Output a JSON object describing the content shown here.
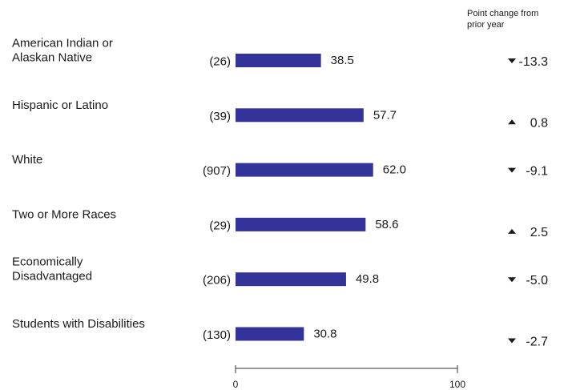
{
  "chart_data": {
    "type": "bar",
    "orientation": "horizontal",
    "categories": [
      "American Indian or Alaskan Native",
      "Hispanic or Latino",
      "White",
      "Two or More Races",
      "Economically Disadvantaged",
      "Students with Disabilities"
    ],
    "category_lines": [
      [
        "American Indian or",
        "Alaskan Native"
      ],
      [
        "Hispanic or Latino"
      ],
      [
        "White"
      ],
      [
        "Two or More Races"
      ],
      [
        "Economically",
        "Disadvantaged"
      ],
      [
        "Students with Disabilities"
      ]
    ],
    "counts": [
      "(26)",
      "(39)",
      "(907)",
      "(29)",
      "(206)",
      "(130)"
    ],
    "values": [
      38.5,
      57.7,
      62.0,
      58.6,
      49.8,
      30.8
    ],
    "value_labels": [
      "38.5",
      "57.7",
      "62.0",
      "58.6",
      "49.8",
      "30.8"
    ],
    "changes": [
      -13.3,
      0.8,
      -9.1,
      2.5,
      -5.0,
      -2.7
    ],
    "change_labels": [
      "-13.3",
      "0.8",
      "-9.1",
      "2.5",
      "-5.0",
      "-2.7"
    ],
    "change_directions": [
      "down",
      "up",
      "down",
      "up",
      "down",
      "down"
    ],
    "change_header": [
      "Point change from",
      "prior year"
    ],
    "xlim": [
      0,
      100
    ],
    "x_ticks": [
      "0",
      "100"
    ],
    "bar_color": "#33339a",
    "grid": false
  }
}
